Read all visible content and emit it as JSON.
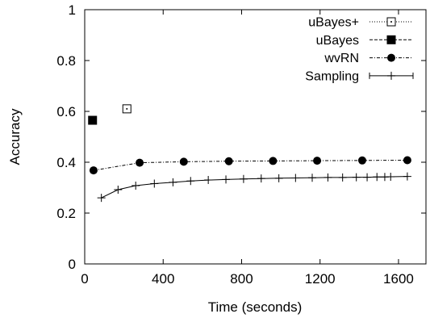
{
  "chart_data": {
    "type": "line",
    "xlabel": "Time (seconds)",
    "ylabel": "Accuracy",
    "xlim": [
      0,
      1740
    ],
    "ylim": [
      0,
      1
    ],
    "xticks": [
      0,
      400,
      800,
      1200,
      1600
    ],
    "yticks": [
      0,
      0.2,
      0.4,
      0.6,
      0.8,
      1
    ],
    "xtick_labels": [
      "0",
      "400",
      "800",
      "1200",
      "1600"
    ],
    "ytick_labels": [
      "0",
      "0.2",
      "0.4",
      "0.6",
      "0.8",
      "1"
    ],
    "grid": false,
    "legend_position": "top-right",
    "series": [
      {
        "name": "uBayes+",
        "marker": "open-square-dot",
        "line": "dotted",
        "x": [
          215
        ],
        "y": [
          0.61
        ]
      },
      {
        "name": "uBayes",
        "marker": "filled-square",
        "line": "dashed",
        "x": [
          40
        ],
        "y": [
          0.565
        ]
      },
      {
        "name": "wvRN",
        "marker": "filled-circle",
        "line": "dash-dot",
        "x": [
          45,
          280,
          505,
          735,
          960,
          1185,
          1415,
          1645
        ],
        "y": [
          0.368,
          0.398,
          0.402,
          0.404,
          0.405,
          0.406,
          0.407,
          0.408
        ]
      },
      {
        "name": "Sampling",
        "marker": "plus",
        "line": "solid",
        "x": [
          85,
          170,
          260,
          355,
          450,
          540,
          630,
          720,
          810,
          900,
          990,
          1075,
          1160,
          1240,
          1315,
          1385,
          1440,
          1490,
          1530,
          1560,
          1645
        ],
        "y": [
          0.26,
          0.292,
          0.308,
          0.316,
          0.321,
          0.326,
          0.33,
          0.332,
          0.334,
          0.336,
          0.337,
          0.338,
          0.339,
          0.34,
          0.34,
          0.341,
          0.341,
          0.342,
          0.342,
          0.343,
          0.344
        ]
      }
    ]
  }
}
